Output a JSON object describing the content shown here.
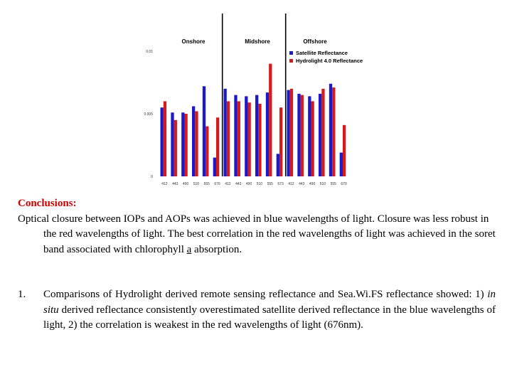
{
  "colors": {
    "satellite": "#1a1ac8",
    "hydrolight": "#d41a1a",
    "divider": "#000000",
    "heading": "#cc0000"
  },
  "chart_data": {
    "type": "bar",
    "categories": [
      "412",
      "443",
      "490",
      "510",
      "555",
      "676",
      "412",
      "443",
      "490",
      "510",
      "555",
      "673",
      "412",
      "443",
      "490",
      "510",
      "555",
      "670"
    ],
    "regions": [
      {
        "name": "Onshore",
        "start": 0,
        "end": 5
      },
      {
        "name": "Midshore",
        "start": 6,
        "end": 11
      },
      {
        "name": "Offshore",
        "start": 12,
        "end": 17
      }
    ],
    "series": [
      {
        "name": "Satellite Reflectance",
        "color": "#1a1ac8",
        "values": [
          0.0055,
          0.0051,
          0.0051,
          0.0056,
          0.0072,
          0.0015,
          0.007,
          0.0065,
          0.0064,
          0.0065,
          0.0067,
          0.0018,
          0.0069,
          0.0066,
          0.0064,
          0.0066,
          0.0074,
          0.0019
        ]
      },
      {
        "name": "Hydrolight 4.0 Reflectance",
        "color": "#d41a1a",
        "values": [
          0.006,
          0.0045,
          0.005,
          0.0052,
          0.004,
          0.0047,
          0.006,
          0.006,
          0.0059,
          0.0058,
          0.009,
          0.0055,
          0.007,
          0.0065,
          0.006,
          0.007,
          0.0071,
          0.0041
        ]
      }
    ],
    "yticks": [
      "0",
      "0.005",
      "0.01"
    ],
    "ylim": [
      0,
      0.0125
    ],
    "grid": false,
    "legend": "top-right"
  },
  "conclusions": {
    "heading": "Conclusions:",
    "paragraph_start": "Optical closure between IOPs and AOPs was achieved in blue wavelengths of light. Closure was less robust  in the red wavelengths of light.  The best correlation in the red wavelengths of light was achieved in the soret band associated with chlorophyll ",
    "underlined": "a",
    "paragraph_end": " absorption."
  },
  "item1": {
    "number": "1.",
    "part1": "Comparisons of Hydrolight derived remote sensing reflectance and Sea.Wi.FS reflectance showed: 1) ",
    "italic": "in situ",
    "part2": " derived reflectance consistently overestimated satellite derived reflectance in the blue wavelengths of light, 2) the correlation is weakest in the red wavelengths of light (676nm)."
  }
}
